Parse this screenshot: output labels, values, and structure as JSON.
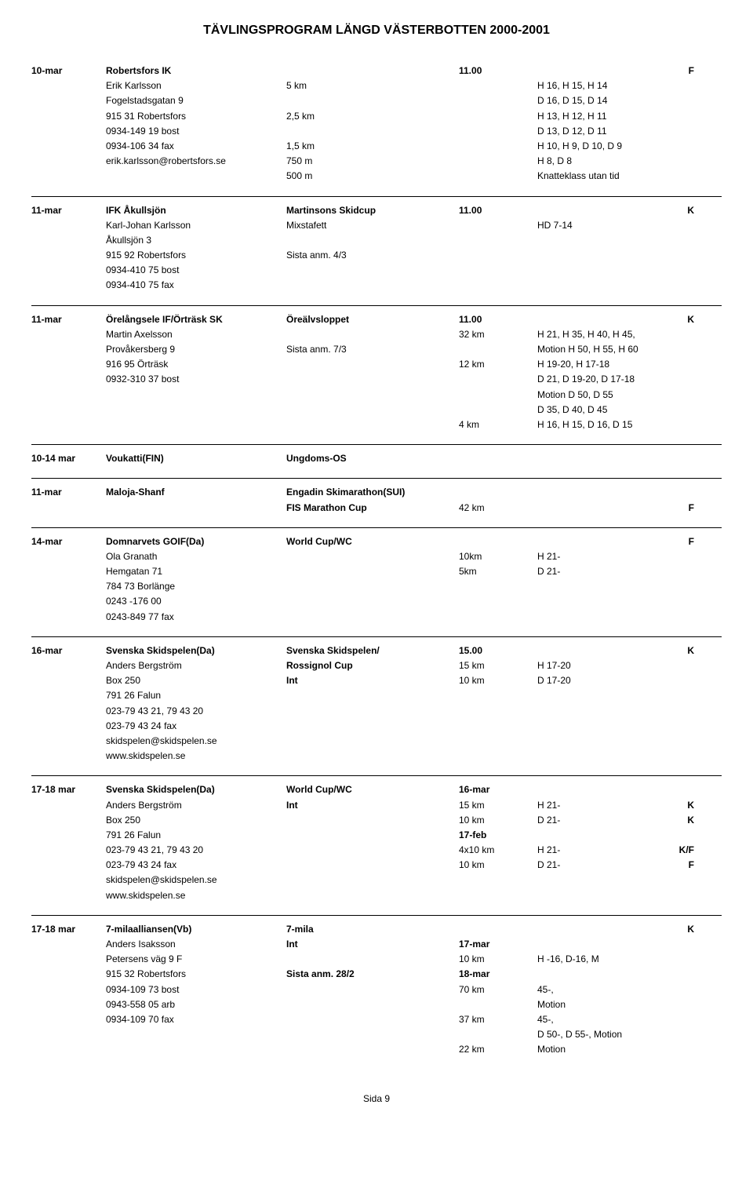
{
  "title": "TÄVLINGSPROGRAM LÄNGD VÄSTERBOTTEN 2000-2001",
  "footer": "Sida 9",
  "e1": {
    "date": "10-mar",
    "org": "Robertsfors IK",
    "time": "11.00",
    "style": "F",
    "r": [
      {
        "c2": "Erik Karlsson",
        "c3": "5 km",
        "c4": "",
        "c5": "H 16, H 15, H 14"
      },
      {
        "c2": "Fogelstadsgatan 9",
        "c3": "",
        "c4": "",
        "c5": "D 16, D 15, D 14"
      },
      {
        "c2": "915 31 Robertsfors",
        "c3": "2,5 km",
        "c4": "",
        "c5": "H 13, H 12, H 11"
      },
      {
        "c2": "0934-149 19 bost",
        "c3": "",
        "c4": "",
        "c5": "D 13, D 12, D 11"
      },
      {
        "c2": "0934-106 34 fax",
        "c3": "1,5 km",
        "c4": "",
        "c5": "H 10, H 9, D 10, D 9"
      },
      {
        "c2": "erik.karlsson@robertsfors.se",
        "c3": "750 m",
        "c4": "",
        "c5": "H 8, D 8"
      },
      {
        "c2": "",
        "c3": "500 m",
        "c4": "",
        "c5": "Knatteklass utan tid"
      }
    ]
  },
  "e2": {
    "date": "11-mar",
    "org": "IFK Åkullsjön",
    "event": "Martinsons Skidcup",
    "time": "11.00",
    "style": "K",
    "r": [
      {
        "c2": "Karl-Johan Karlsson",
        "c3": "Mixstafett",
        "c4": "",
        "c5": "HD 7-14"
      },
      {
        "c2": "Åkullsjön 3"
      },
      {
        "c2": "915 92 Robertsfors",
        "c3": "Sista anm. 4/3"
      },
      {
        "c2": "0934-410 75 bost"
      },
      {
        "c2": "0934-410 75 fax"
      }
    ]
  },
  "e3": {
    "date": "11-mar",
    "org": "Örelångsele IF/Örträsk SK",
    "event": "Öreälvsloppet",
    "time": "11.00",
    "style": "K",
    "r": [
      {
        "c2": "Martin Axelsson",
        "c3": "",
        "c4": "32 km",
        "c5": "H 21, H 35, H 40, H 45,"
      },
      {
        "c2": "Provåkersberg 9",
        "c3": "Sista anm. 7/3",
        "c4": "",
        "c5": "Motion H 50, H 55, H 60"
      },
      {
        "c2": "916 95 Örträsk",
        "c3": "",
        "c4": "12 km",
        "c5": "H 19-20, H 17-18"
      },
      {
        "c2": "0932-310 37 bost",
        "c3": "",
        "c4": "",
        "c5": "D 21, D 19-20, D 17-18"
      },
      {
        "c2": "",
        "c3": "",
        "c4": "",
        "c5": "Motion D 50, D 55"
      },
      {
        "c2": "",
        "c3": "",
        "c4": "",
        "c5": "D 35, D 40, D 45"
      },
      {
        "c2": "",
        "c3": "",
        "c4": "4 km",
        "c5": "H 16, H 15, D 16, D 15"
      }
    ]
  },
  "e4": {
    "date": "10-14 mar",
    "org": "Voukatti(FIN)",
    "event": "Ungdoms-OS"
  },
  "e5": {
    "date": "11-mar",
    "org": "Maloja-Shanf",
    "event": "Engadin Skimarathon(SUI)",
    "r": [
      {
        "c3": "FIS Marathon Cup",
        "c4": "42 km",
        "c6": "F",
        "c3bold": true,
        "c6bold": true
      }
    ]
  },
  "e6": {
    "date": "14-mar",
    "org": "Domnarvets GOIF(Da)",
    "event": "World Cup/WC",
    "style": "F",
    "r": [
      {
        "c2": "Ola Granath",
        "c4": "10km",
        "c5": "H 21-"
      },
      {
        "c2": "Hemgatan 71",
        "c4": "5km",
        "c5": "D 21-"
      },
      {
        "c2": "784 73 Borlänge"
      },
      {
        "c2": "0243 -176 00"
      },
      {
        "c2": "0243-849 77 fax"
      }
    ]
  },
  "e7": {
    "date": "16-mar",
    "org": "Svenska Skidspelen(Da)",
    "event": "Svenska Skidspelen/",
    "time": "15.00",
    "style": "K",
    "r": [
      {
        "c2": "Anders Bergström",
        "c3": "Rossignol Cup",
        "c4": "15 km",
        "c5": "H 17-20",
        "c3bold": true
      },
      {
        "c2": "Box 250",
        "c3": "Int",
        "c4": "10 km",
        "c5": "D 17-20",
        "c3bold": true
      },
      {
        "c2": "791 26 Falun"
      },
      {
        "c2": "023-79 43 21, 79 43 20"
      },
      {
        "c2": "023-79 43 24 fax"
      },
      {
        "c2": "skidspelen@skidspelen.se"
      },
      {
        "c2": "www.skidspelen.se"
      }
    ]
  },
  "e8": {
    "date": "17-18 mar",
    "org": "Svenska Skidspelen(Da)",
    "event": "World Cup/WC",
    "time": "16-mar",
    "r": [
      {
        "c2": "Anders Bergström",
        "c3": "Int",
        "c4": "15 km",
        "c5": "H 21-",
        "c6": "K",
        "c3bold": true,
        "c6bold": true
      },
      {
        "c2": "Box 250",
        "c4": "10 km",
        "c5": "D 21-",
        "c6": "K",
        "c6bold": true
      },
      {
        "c2": "791 26 Falun",
        "c4": "17-feb",
        "c4bold": true
      },
      {
        "c2": "023-79 43 21, 79 43 20",
        "c4": "4x10 km",
        "c5": "H 21-",
        "c6": "K/F",
        "c6bold": true
      },
      {
        "c2": "023-79 43 24 fax",
        "c4": "10 km",
        "c5": "D 21-",
        "c6": "F",
        "c6bold": true
      },
      {
        "c2": "skidspelen@skidspelen.se"
      },
      {
        "c2": "www.skidspelen.se"
      }
    ]
  },
  "e9": {
    "date": "17-18 mar",
    "org": "7-milaalliansen(Vb)",
    "event": "7-mila",
    "style": "K",
    "r": [
      {
        "c2": "Anders Isaksson",
        "c3": "Int",
        "c4": "17-mar",
        "c3bold": true,
        "c4bold": true
      },
      {
        "c2": "Petersens väg 9 F",
        "c4": "10 km",
        "c5": "H -16, D-16, M"
      },
      {
        "c2": "915 32 Robertsfors",
        "c3": "Sista anm. 28/2",
        "c4": "18-mar",
        "c3bold": true,
        "c4bold": true
      },
      {
        "c2": "0934-109 73 bost",
        "c4": "70 km",
        "c5": "45-,"
      },
      {
        "c2": "0943-558 05 arb",
        "c5": "Motion"
      },
      {
        "c2": "0934-109 70 fax",
        "c4": "37 km",
        "c5": "45-,"
      },
      {
        "c5": "D 50-, D 55-, Motion"
      },
      {
        "c4": "22 km",
        "c5": "Motion"
      }
    ]
  }
}
